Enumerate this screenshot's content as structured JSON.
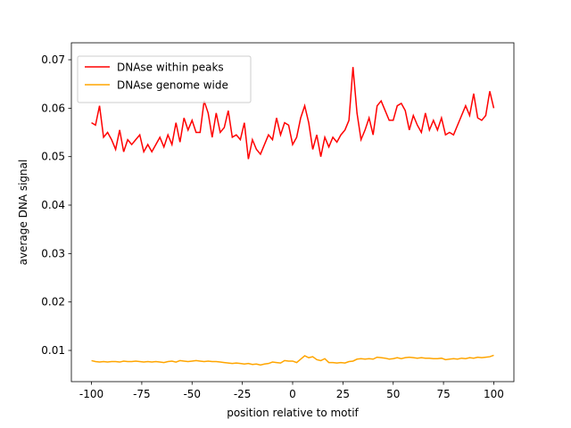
{
  "chart_data": {
    "type": "line",
    "xlabel": "position relative to motif",
    "ylabel": "average DNA signal",
    "x": [
      -100,
      -98,
      -96,
      -94,
      -92,
      -90,
      -88,
      -86,
      -84,
      -82,
      -80,
      -78,
      -76,
      -74,
      -72,
      -70,
      -68,
      -66,
      -64,
      -62,
      -60,
      -58,
      -56,
      -54,
      -52,
      -50,
      -48,
      -46,
      -44,
      -42,
      -40,
      -38,
      -36,
      -34,
      -32,
      -30,
      -28,
      -26,
      -24,
      -22,
      -20,
      -18,
      -16,
      -14,
      -12,
      -10,
      -8,
      -6,
      -4,
      -2,
      0,
      2,
      4,
      6,
      8,
      10,
      12,
      14,
      16,
      18,
      20,
      22,
      24,
      26,
      28,
      30,
      32,
      34,
      36,
      38,
      40,
      42,
      44,
      46,
      48,
      50,
      52,
      54,
      56,
      58,
      60,
      62,
      64,
      66,
      68,
      70,
      72,
      74,
      76,
      78,
      80,
      82,
      84,
      86,
      88,
      90,
      92,
      94,
      96,
      98,
      100
    ],
    "series": [
      {
        "name": "DNAse within peaks",
        "color": "#ff0000",
        "values": [
          0.057,
          0.0565,
          0.0605,
          0.054,
          0.055,
          0.0535,
          0.0515,
          0.0555,
          0.051,
          0.0535,
          0.0525,
          0.0535,
          0.0545,
          0.051,
          0.0525,
          0.051,
          0.0525,
          0.054,
          0.052,
          0.0545,
          0.0525,
          0.057,
          0.053,
          0.058,
          0.0555,
          0.0575,
          0.055,
          0.055,
          0.0615,
          0.059,
          0.054,
          0.059,
          0.055,
          0.056,
          0.0595,
          0.054,
          0.0545,
          0.0535,
          0.057,
          0.0495,
          0.0535,
          0.0515,
          0.0505,
          0.0525,
          0.0545,
          0.0535,
          0.058,
          0.0545,
          0.057,
          0.0565,
          0.0525,
          0.054,
          0.058,
          0.0605,
          0.057,
          0.0515,
          0.0545,
          0.05,
          0.054,
          0.052,
          0.054,
          0.053,
          0.0545,
          0.0555,
          0.0575,
          0.0685,
          0.059,
          0.0535,
          0.0555,
          0.058,
          0.0545,
          0.0605,
          0.0615,
          0.0595,
          0.0575,
          0.0575,
          0.0605,
          0.061,
          0.0595,
          0.0555,
          0.0585,
          0.0565,
          0.055,
          0.059,
          0.0555,
          0.0575,
          0.0555,
          0.058,
          0.0545,
          0.055,
          0.0545,
          0.0565,
          0.0585,
          0.0605,
          0.0585,
          0.063,
          0.058,
          0.0575,
          0.0585,
          0.0635,
          0.06
        ]
      },
      {
        "name": "DNAse genome wide",
        "color": "#ffa500",
        "values": [
          0.0079,
          0.0077,
          0.0076,
          0.0077,
          0.0076,
          0.0077,
          0.0077,
          0.0076,
          0.0078,
          0.0077,
          0.0077,
          0.0078,
          0.0077,
          0.0076,
          0.0077,
          0.0076,
          0.0077,
          0.0076,
          0.0075,
          0.0077,
          0.0078,
          0.0076,
          0.0079,
          0.0078,
          0.0077,
          0.0078,
          0.0079,
          0.0078,
          0.0077,
          0.0078,
          0.0077,
          0.0077,
          0.0076,
          0.0075,
          0.0074,
          0.0073,
          0.0074,
          0.0073,
          0.0072,
          0.0073,
          0.0071,
          0.0072,
          0.007,
          0.0072,
          0.0073,
          0.0076,
          0.0075,
          0.0074,
          0.0079,
          0.0078,
          0.0078,
          0.0075,
          0.0082,
          0.0089,
          0.0085,
          0.0087,
          0.0081,
          0.0079,
          0.0083,
          0.0075,
          0.0075,
          0.0074,
          0.0075,
          0.0074,
          0.0077,
          0.0078,
          0.0082,
          0.0083,
          0.0082,
          0.0083,
          0.0082,
          0.0086,
          0.0085,
          0.0084,
          0.0082,
          0.0083,
          0.0085,
          0.0083,
          0.0085,
          0.0086,
          0.0085,
          0.0084,
          0.0085,
          0.0084,
          0.0084,
          0.0083,
          0.0083,
          0.0084,
          0.0081,
          0.0082,
          0.0083,
          0.0082,
          0.0084,
          0.0083,
          0.0085,
          0.0084,
          0.0086,
          0.0085,
          0.0086,
          0.0087,
          0.009
        ]
      }
    ],
    "xlim": [
      -110,
      110
    ],
    "ylim": [
      0.00356,
      0.0735
    ],
    "xticks": [
      -100,
      -75,
      -50,
      -25,
      0,
      25,
      50,
      75,
      100
    ],
    "yticks": [
      0.01,
      0.02,
      0.03,
      0.04,
      0.05,
      0.06,
      0.07
    ],
    "grid": false,
    "legend": "upper left"
  }
}
